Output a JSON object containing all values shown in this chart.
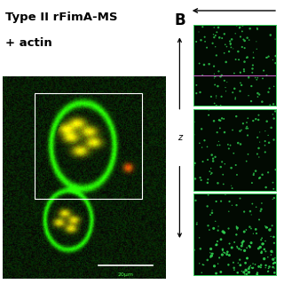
{
  "title_line1": "Type II rFimA-MS",
  "title_line2": "+ actin",
  "title_fontsize": 9.5,
  "title_fontweight": "bold",
  "label_B": "B",
  "label_B_fontsize": 12,
  "label_B_fontweight": "bold",
  "scalebar_text": "20μm",
  "z_label": "z",
  "fig_bg": "#ffffff",
  "panel_border_color": "#cc66cc",
  "green_dot_color": "#00cc44",
  "separator_line_color": "#cc66cc",
  "main_img_bg": "#1a2a1a"
}
